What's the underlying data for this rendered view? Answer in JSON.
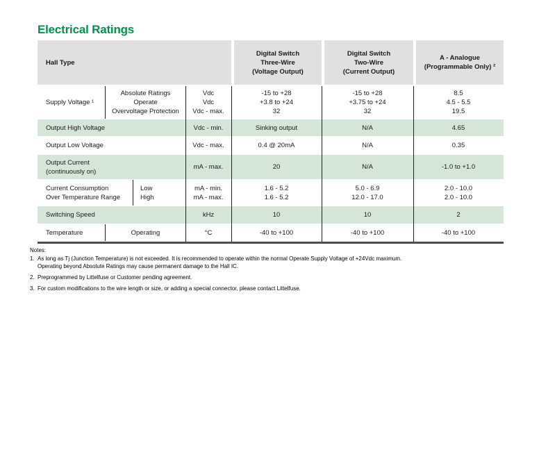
{
  "title": "Electrical Ratings",
  "colors": {
    "accent_green": "#00914e",
    "header_bg": "#e0e0e0",
    "row_green": "#d6e5d9",
    "grid_line": "#1f1f1f",
    "bottom_rule": "#4d4d4d"
  },
  "table": {
    "header": {
      "hall_type": "Hall Type",
      "three_wire": [
        "Digital Switch",
        "Three-Wire",
        "(Voltage Output)"
      ],
      "two_wire": [
        "Digital Switch",
        "Two-Wire",
        "(Current Output)"
      ],
      "analogue": [
        "A - Analogue",
        "(Programmable Only) ²"
      ]
    },
    "rows": {
      "supply_voltage": {
        "label": "Supply Voltage ¹",
        "sub": [
          "Absolute Ratings",
          "Operate",
          "Overvoltage Protection"
        ],
        "units": [
          "Vdc",
          "Vdc",
          "Vdc - max."
        ],
        "three_wire": [
          "-15 to +28",
          "+3.8 to +24",
          "32"
        ],
        "two_wire": [
          "-15 to +28",
          "+3.75 to +24",
          "32"
        ],
        "analogue": [
          "8.5",
          "4.5 - 5.5",
          "19.5"
        ]
      },
      "output_high_voltage": {
        "label": "Output High Voltage",
        "units": "Vdc - min.",
        "three_wire": "Sinking output",
        "two_wire": "N/A",
        "analogue": "4.65"
      },
      "output_low_voltage": {
        "label": "Output Low Voltage",
        "units": "Vdc - max.",
        "three_wire": "0.4 @ 20mA",
        "two_wire": "N/A",
        "analogue": "0.35"
      },
      "output_current": {
        "label": [
          "Output Current",
          "(continuously on)"
        ],
        "units": "mA - max.",
        "three_wire": "20",
        "two_wire": "N/A",
        "analogue": "-1.0 to +1.0"
      },
      "current_consumption": {
        "label": [
          "Current Consumption",
          "Over Temperature Range"
        ],
        "sub": [
          "Low",
          "High"
        ],
        "units": [
          "mA - min.",
          "mA - max."
        ],
        "three_wire": [
          "1.6 - 5.2",
          "1.6 - 5.2"
        ],
        "two_wire": [
          "5.0 - 6.9",
          "12.0 - 17.0"
        ],
        "analogue": [
          "2.0 - 10.0",
          "2.0 - 10.0"
        ]
      },
      "switching_speed": {
        "label": "Switching Speed",
        "units": "kHz",
        "three_wire": "10",
        "two_wire": "10",
        "analogue": "2"
      },
      "temperature": {
        "label": "Temperature",
        "sub": "Operating",
        "units": "°C",
        "three_wire": "-40 to +100",
        "two_wire": "-40 to +100",
        "analogue": "-40 to +100"
      }
    }
  },
  "notes": {
    "label": "Notes:",
    "items": [
      {
        "num": "1.",
        "lines": [
          "As long as Tj (Junction Temperature) is not exceeded. It is recommended to operate within the normal Operate Supply Voltage of +24Vdc maximum.",
          "Operating beyond Absolute Ratings may cause permanent damage to the Hall IC."
        ]
      },
      {
        "num": "2.",
        "lines": [
          "Preprogrammed by Littelfuse or Customer pending agreement."
        ]
      },
      {
        "num": "3.",
        "lines": [
          "For custom modifications to the wire length or size, or adding a special connector, please contact Littelfuse."
        ]
      }
    ]
  }
}
